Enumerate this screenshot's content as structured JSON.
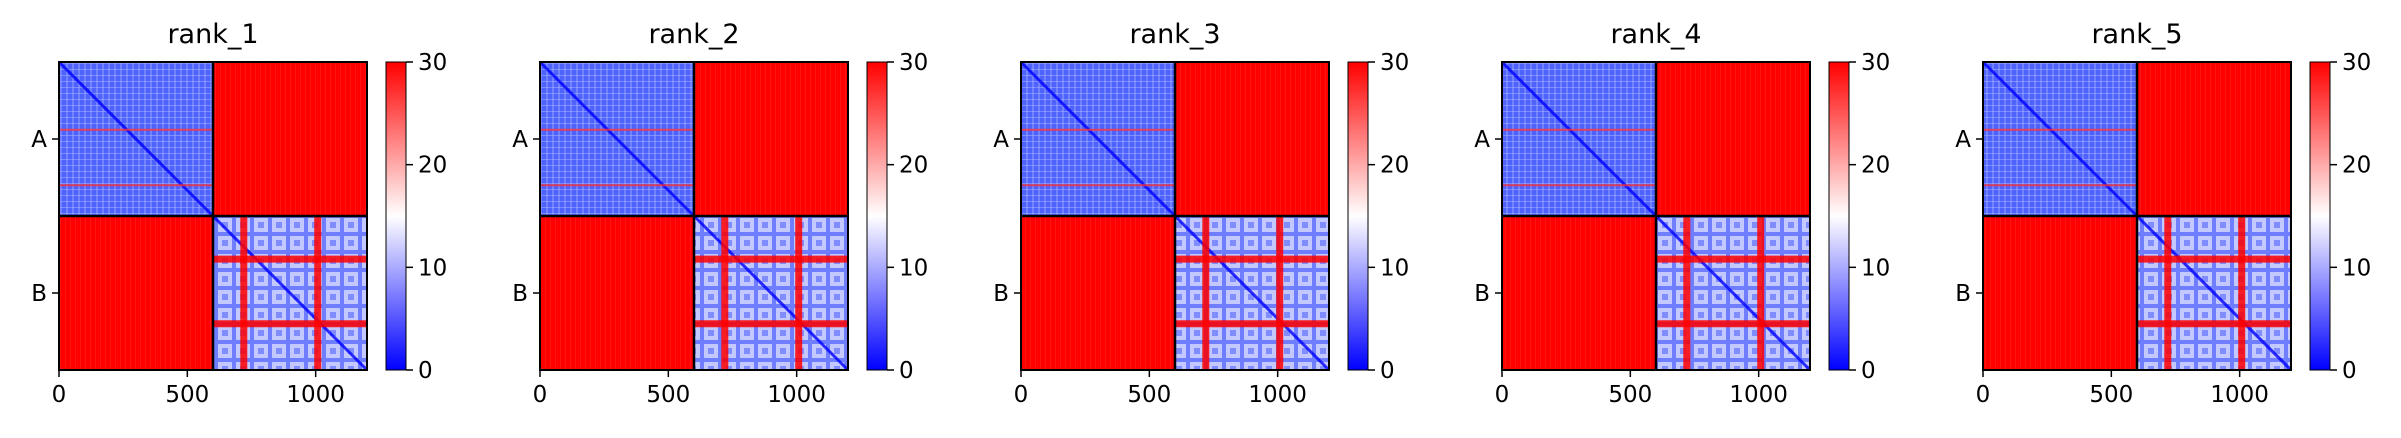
{
  "colors": {
    "high": "#ff0000",
    "mid": "#ffffff",
    "low": "#0000ff",
    "border": "#000000"
  },
  "chart_data": [
    {
      "type": "heatmap",
      "title": "rank_1",
      "xlim": [
        0,
        1200
      ],
      "x_ticks": [
        0,
        500,
        1000
      ],
      "y_tick_labels": [
        "A",
        "B"
      ],
      "chain_boundary": 600,
      "colorbar": {
        "range": [
          0,
          30
        ],
        "ticks": [
          0,
          10,
          20,
          30
        ],
        "colormap": "bwr"
      },
      "blocks": {
        "A_A": "low",
        "A_B": "high",
        "B_A": "high",
        "B_B": "low-with-high-bands"
      }
    },
    {
      "type": "heatmap",
      "title": "rank_2",
      "xlim": [
        0,
        1200
      ],
      "x_ticks": [
        0,
        500,
        1000
      ],
      "y_tick_labels": [
        "A",
        "B"
      ],
      "chain_boundary": 600,
      "colorbar": {
        "range": [
          0,
          30
        ],
        "ticks": [
          0,
          10,
          20,
          30
        ],
        "colormap": "bwr"
      },
      "blocks": {
        "A_A": "low",
        "A_B": "high",
        "B_A": "high",
        "B_B": "low-with-high-bands"
      }
    },
    {
      "type": "heatmap",
      "title": "rank_3",
      "xlim": [
        0,
        1200
      ],
      "x_ticks": [
        0,
        500,
        1000
      ],
      "y_tick_labels": [
        "A",
        "B"
      ],
      "chain_boundary": 600,
      "colorbar": {
        "range": [
          0,
          30
        ],
        "ticks": [
          0,
          10,
          20,
          30
        ],
        "colormap": "bwr"
      },
      "blocks": {
        "A_A": "low",
        "A_B": "high",
        "B_A": "high",
        "B_B": "low-with-high-bands"
      }
    },
    {
      "type": "heatmap",
      "title": "rank_4",
      "xlim": [
        0,
        1200
      ],
      "x_ticks": [
        0,
        500,
        1000
      ],
      "y_tick_labels": [
        "A",
        "B"
      ],
      "chain_boundary": 600,
      "colorbar": {
        "range": [
          0,
          30
        ],
        "ticks": [
          0,
          10,
          20,
          30
        ],
        "colormap": "bwr"
      },
      "blocks": {
        "A_A": "low",
        "A_B": "high",
        "B_A": "high",
        "B_B": "low-with-high-bands"
      }
    },
    {
      "type": "heatmap",
      "title": "rank_5",
      "xlim": [
        0,
        1200
      ],
      "x_ticks": [
        0,
        500,
        1000
      ],
      "y_tick_labels": [
        "A",
        "B"
      ],
      "chain_boundary": 600,
      "colorbar": {
        "range": [
          0,
          30
        ],
        "ticks": [
          0,
          10,
          20,
          30
        ],
        "colormap": "bwr"
      },
      "blocks": {
        "A_A": "low",
        "A_B": "high",
        "B_A": "high",
        "B_B": "low-with-high-bands"
      }
    }
  ]
}
